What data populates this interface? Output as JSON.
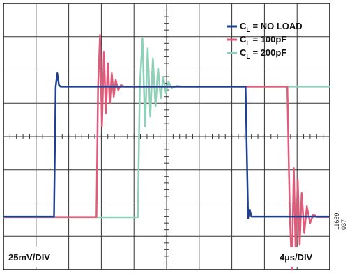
{
  "figure_id": "11689-037",
  "chart_data": {
    "type": "line",
    "title": "",
    "xlabel": "",
    "ylabel": "",
    "grid": true,
    "divisions": {
      "x": 10,
      "y": 8
    },
    "xlim": [
      0,
      10
    ],
    "ylim": [
      -4,
      4
    ],
    "scale_labels": {
      "vertical": "25mV/DIV",
      "horizontal": "4µs/DIV"
    },
    "legend_position": "top-right",
    "series": [
      {
        "name": "C",
        "name_subscript": "L",
        "name_suffix": " = NO LOAD",
        "color": "#1f3f8f",
        "points": [
          [
            0,
            -2.41
          ],
          [
            1.55,
            -2.41
          ],
          [
            1.6,
            1.5
          ],
          [
            1.65,
            1.9
          ],
          [
            1.7,
            1.55
          ],
          [
            1.75,
            1.5
          ],
          [
            7.42,
            1.5
          ],
          [
            7.47,
            -1.0
          ],
          [
            7.5,
            -2.45
          ],
          [
            7.55,
            -2.2
          ],
          [
            7.6,
            -2.41
          ],
          [
            10,
            -2.41
          ]
        ]
      },
      {
        "name": "C",
        "name_subscript": "L",
        "name_suffix": " = 100pF",
        "color": "#e05a7a",
        "points": [
          [
            0,
            -2.42
          ],
          [
            2.85,
            -2.42
          ],
          [
            2.9,
            1.5
          ],
          [
            2.96,
            3.05
          ],
          [
            3.02,
            0.3
          ],
          [
            3.08,
            2.55
          ],
          [
            3.14,
            0.7
          ],
          [
            3.2,
            2.2
          ],
          [
            3.26,
            1.0
          ],
          [
            3.32,
            1.9
          ],
          [
            3.38,
            1.2
          ],
          [
            3.44,
            1.7
          ],
          [
            3.52,
            1.4
          ],
          [
            3.6,
            1.55
          ],
          [
            3.7,
            1.5
          ],
          [
            8.7,
            1.5
          ],
          [
            8.75,
            -1.0
          ],
          [
            8.78,
            -2.42
          ],
          [
            8.84,
            -4.0
          ],
          [
            8.9,
            -0.95
          ],
          [
            8.96,
            -3.6
          ],
          [
            9.02,
            -1.3
          ],
          [
            9.08,
            -3.25
          ],
          [
            9.14,
            -1.7
          ],
          [
            9.22,
            -2.9
          ],
          [
            9.3,
            -2.1
          ],
          [
            9.4,
            -2.6
          ],
          [
            9.5,
            -2.35
          ],
          [
            9.6,
            -2.42
          ],
          [
            10,
            -2.42
          ]
        ]
      },
      {
        "name": "C",
        "name_subscript": "L",
        "name_suffix": " = 200pF",
        "color": "#8fd1b8",
        "points": [
          [
            0,
            -2.43
          ],
          [
            4.12,
            -2.43
          ],
          [
            4.18,
            1.5
          ],
          [
            4.26,
            2.95
          ],
          [
            4.34,
            0.3
          ],
          [
            4.42,
            2.65
          ],
          [
            4.5,
            0.6
          ],
          [
            4.58,
            2.35
          ],
          [
            4.66,
            0.9
          ],
          [
            4.74,
            2.05
          ],
          [
            4.82,
            1.15
          ],
          [
            4.9,
            1.8
          ],
          [
            4.98,
            1.3
          ],
          [
            5.06,
            1.65
          ],
          [
            5.16,
            1.45
          ],
          [
            5.3,
            1.52
          ],
          [
            5.5,
            1.5
          ],
          [
            10.05,
            1.5
          ]
        ]
      }
    ]
  }
}
